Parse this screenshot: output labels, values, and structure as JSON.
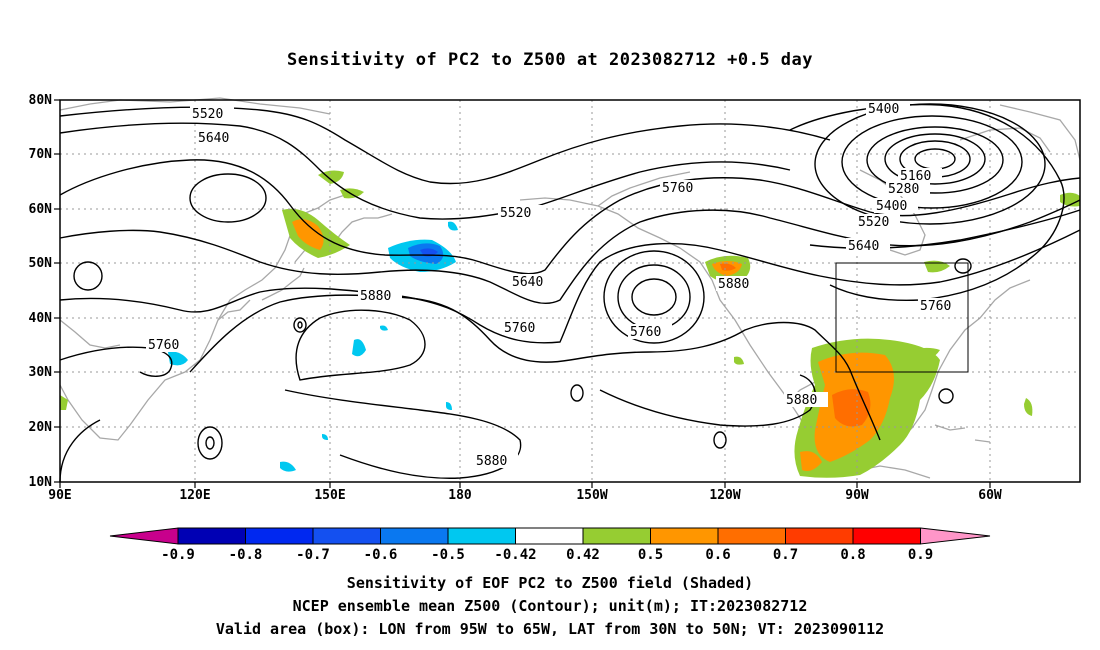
{
  "title": "Sensitivity of PC2 to Z500 at 2023082712 +0.5 day",
  "map": {
    "lon_ticks": [
      "90E",
      "120E",
      "150E",
      "180",
      "150W",
      "120W",
      "90W",
      "60W"
    ],
    "lat_ticks": [
      "80N",
      "70N",
      "60N",
      "50N",
      "40N",
      "30N",
      "20N",
      "10N"
    ],
    "contour_labels": [
      "5520",
      "5640",
      "5520",
      "5640",
      "5760",
      "5880",
      "5760",
      "5760",
      "5760",
      "5880",
      "5880",
      "5880",
      "5400",
      "5160",
      "5280",
      "5400",
      "5520",
      "5640",
      "5760"
    ],
    "box": {
      "lon_west": "95W",
      "lon_east": "65W",
      "lat_south": "30N",
      "lat_north": "50N"
    }
  },
  "colorbar": {
    "levels": [
      "-0.9",
      "-0.8",
      "-0.7",
      "-0.6",
      "-0.5",
      "-0.42",
      "0.42",
      "0.5",
      "0.6",
      "0.7",
      "0.8",
      "0.9"
    ],
    "colors": [
      "#0000b4",
      "#0028f0",
      "#1450f0",
      "#0a78f0",
      "#00c8f0",
      "#ffffff",
      "#96cd32",
      "#ff9600",
      "#ff6e00",
      "#ff3c00",
      "#ff0000"
    ],
    "low_end_color": "#c8008c",
    "high_end_color": "#ff96c8"
  },
  "caption": {
    "line1": "Sensitivity of EOF PC2 to Z500 field (Shaded)",
    "line2": "NCEP ensemble mean Z500 (Contour); unit(m); IT:2023082712",
    "line3": "Valid area (box): LON from 95W to 65W, LAT from 30N to 50N; VT: 2023090112"
  }
}
